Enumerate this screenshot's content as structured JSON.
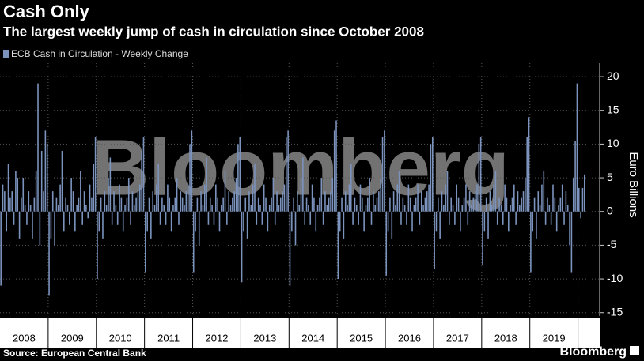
{
  "chart_data": {
    "type": "bar",
    "title": "Cash Only",
    "subtitle": "The largest weekly jump of cash in circulation since October 2008",
    "series_name": "ECB Cash in Circulation - Weekly Change",
    "y_axis_label": "Euro Billions",
    "source": "Source: European Central Bank",
    "watermark": "Bloomberg",
    "brand": "Bloomberg",
    "color": "#7b93bd",
    "categories": [
      "2008",
      "2009",
      "2010",
      "2011",
      "2012",
      "2013",
      "2014",
      "2015",
      "2016",
      "2017",
      "2018",
      "2019",
      null
    ],
    "values": [
      [
        -11,
        4,
        3,
        -3,
        7,
        2,
        3,
        -2,
        6,
        5,
        -4,
        2,
        5,
        1,
        -2,
        3,
        1,
        -4,
        2,
        6,
        19,
        -5,
        9,
        3,
        12,
        10
      ],
      [
        -12.5,
        -4,
        3,
        -5,
        2,
        1,
        4,
        9,
        -3,
        2,
        1,
        -2,
        5,
        3,
        -3,
        1,
        2,
        6,
        -2,
        3,
        1,
        -1,
        4,
        2,
        7,
        11
      ],
      [
        -10,
        -3,
        2,
        -4,
        3,
        1,
        5,
        8,
        -2,
        3,
        1,
        -2,
        4,
        2,
        -3,
        1,
        2,
        5,
        -2,
        3,
        1,
        2,
        3,
        4,
        9,
        11
      ],
      [
        -9,
        -3,
        2,
        -4,
        3,
        1,
        4,
        7,
        -2,
        2,
        1,
        -2,
        4,
        2,
        -3,
        1,
        2,
        5,
        -2,
        3,
        2,
        1,
        3,
        4,
        10,
        12
      ],
      [
        -9,
        -3,
        2,
        -5,
        3,
        1,
        4,
        8,
        -2,
        2,
        1,
        -2,
        4,
        2,
        -3,
        1,
        2,
        6,
        -2,
        3,
        1,
        2,
        3,
        5,
        10,
        11
      ],
      [
        -10.5,
        -3,
        2,
        -4,
        3,
        1,
        4,
        7,
        -2,
        2,
        1,
        -2,
        4,
        2,
        -3,
        1,
        2,
        5,
        -2,
        3,
        1,
        2,
        3,
        4,
        11,
        12
      ],
      [
        -11,
        -3,
        2,
        -5,
        3,
        1,
        5,
        8,
        -2,
        2,
        1,
        -2,
        4,
        2,
        -3,
        1,
        2,
        5,
        -2,
        3,
        1,
        2,
        3,
        5,
        12,
        13.5
      ],
      [
        -10,
        -3,
        2,
        -4,
        3,
        1,
        4,
        7,
        -2,
        2,
        1,
        -2,
        4,
        2,
        -3,
        1,
        2,
        5,
        -2,
        3,
        1,
        2,
        3,
        5,
        11,
        12
      ],
      [
        -9.5,
        -3,
        2,
        -4,
        3,
        1,
        4,
        6,
        -2,
        2,
        1,
        -2,
        4,
        2,
        -3,
        1,
        2,
        4,
        -2,
        3,
        1,
        2,
        3,
        4,
        10,
        11
      ],
      [
        -8.5,
        -3,
        2,
        -4,
        3,
        1,
        4,
        6,
        -2,
        2,
        1,
        -2,
        4,
        2,
        -3,
        1,
        2,
        4,
        -2,
        3,
        1,
        2,
        3,
        4,
        10,
        11
      ],
      [
        -8,
        -3,
        2,
        -4,
        3,
        1,
        4,
        6,
        -2,
        2,
        1,
        -2,
        4,
        2,
        -3,
        1,
        2,
        4,
        -2,
        3,
        1,
        2,
        3,
        5,
        11,
        14
      ],
      [
        -9,
        -3,
        2,
        -4,
        3,
        1,
        4,
        6,
        -2,
        2,
        1,
        -2,
        4,
        2,
        -3,
        1,
        2,
        4,
        -2,
        3,
        1,
        -5,
        -9,
        5,
        10.5,
        19
      ],
      [
        3.5,
        -1,
        3.5,
        5.5
      ]
    ],
    "xlim": [
      2008,
      2020.45
    ],
    "ylim": [
      -15.5,
      22
    ],
    "yticks": [
      -15,
      -10,
      -5,
      0,
      5,
      10,
      15,
      20
    ],
    "grid": true
  }
}
